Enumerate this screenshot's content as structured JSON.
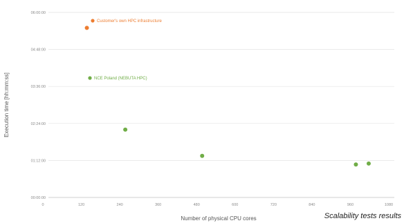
{
  "caption": "Scalability tests results",
  "chart_data": {
    "type": "scatter",
    "xlabel": "Number of physical CPU cores",
    "ylabel": "Execution time [hh:mm:ss]",
    "xlim": [
      0,
      1080
    ],
    "ylim": [
      0,
      6
    ],
    "x_ticks": [
      "0",
      "120",
      "240",
      "360",
      "480",
      "600",
      "720",
      "840",
      "960",
      "1080"
    ],
    "y_ticks": [
      "00:00:00",
      "01:12:00",
      "02:24:00",
      "03:36:00",
      "04:48:00",
      "06:00:00"
    ],
    "grid": "horizontal",
    "series": [
      {
        "name": "Customer's own HPC infrastructure",
        "color": "#ed7d31",
        "points": [
          {
            "x": 120,
            "y_hours": 5.5
          }
        ]
      },
      {
        "name": "NCE Poland (NEBUTA HPC)",
        "color": "#70ad47",
        "points": [
          {
            "x": 240,
            "y_hours": 2.2
          },
          {
            "x": 480,
            "y_hours": 1.35
          },
          {
            "x": 960,
            "y_hours": 1.07
          },
          {
            "x": 1000,
            "y_hours": 1.1
          }
        ]
      }
    ],
    "legend": {
      "placement": "inline top-left"
    }
  }
}
